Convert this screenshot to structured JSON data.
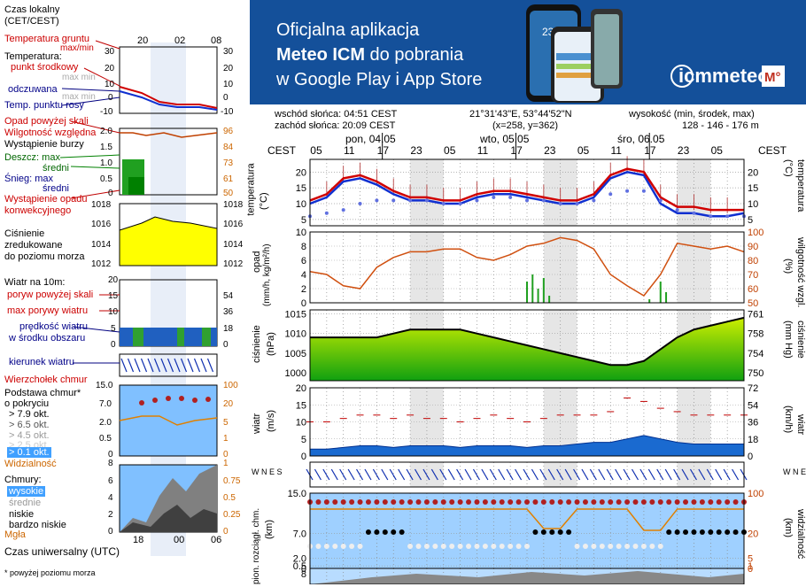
{
  "banner": {
    "line1": "Oficjalna aplikacja",
    "line2a": "Meteo ICM",
    "line2b": " do pobrania",
    "line3": "w Google Play i App Store",
    "logo_text": "icmmeteo",
    "logo_badge": "M°",
    "phone_temp": "23°"
  },
  "legend": {
    "time_local": "Czas lokalny",
    "time_local2": "(CET/CEST)",
    "top_ticks": [
      "20",
      "02",
      "08"
    ],
    "temp_ground": "Temperatura gruntu",
    "temp_ground_mm": "max/min",
    "temperature": "Temperatura:",
    "mid_point": "punkt środkowy",
    "max_min": "max min",
    "felt": "odczuwana",
    "max_min2": "max min",
    "dew_point": "Temp. punktu rosy",
    "temp_ticks": [
      "30",
      "20",
      "10",
      "0",
      "-10"
    ],
    "precip_above": "Opad powyżej skali",
    "humidity": "Wilgotność względna",
    "storm": "Wystąpienie burzy",
    "rain_max": "Deszcz: max",
    "rain_mean": "średni",
    "snow_max": "Śnieg:   max",
    "snow_mean": "średni",
    "precip_conv": "Wystąpienie opadu",
    "precip_conv2": "konwekcyjnego",
    "precip_ticks": [
      "2.0",
      "1.5",
      "1.0",
      "0.5",
      "0"
    ],
    "hum_ticks": [
      "96",
      "84",
      "73",
      "61",
      "50"
    ],
    "pressure1": "Ciśnienie",
    "pressure2": "zredukowane",
    "pressure3": "do poziomu morza",
    "press_ticks": [
      "1018",
      "1016",
      "1014",
      "1012"
    ],
    "wind_at": "Wiatr na 10m:",
    "gusts_above": "poryw powyżej skali",
    "max_gust": "max porywy wiatru",
    "wind_speed": "prędkość wiatru",
    "wind_speed2": "w środku obszaru",
    "wind_ticks_l": [
      "20",
      "15",
      "10",
      "5",
      "0"
    ],
    "wind_ticks_r": [
      "72",
      "54",
      "36",
      "18",
      "0"
    ],
    "wind_dir": "kierunek wiatru",
    "cloud_top": "Wierzchołek chmur",
    "cloud_base": "Podstawa chmur*",
    "cloud_cover": "o pokryciu",
    "okt1": "> 7.9 okt.",
    "okt2": "> 6.5 okt.",
    "okt3": "> 4.5 okt.",
    "okt4": "> 2.5 okt.",
    "okt5": "> 0.1 okt.",
    "visibility": "Widzialność",
    "cb_ticks_l": [
      "15.0",
      "7.0",
      "2.0",
      "0.5",
      "0"
    ],
    "cb_ticks_r": [
      "100",
      "20",
      "5",
      "1",
      "0"
    ],
    "clouds": "Chmury:",
    "high": "wysokie",
    "medium": "średnie",
    "low": "niskie",
    "very_low": "bardzo niskie",
    "fog": "Mgła",
    "cl_ticks_l": [
      "8",
      "6",
      "4",
      "2",
      "0"
    ],
    "cl_ticks_r": [
      "1",
      "0.75",
      "0.5",
      "0.25",
      "0"
    ],
    "utc": "Czas uniwersalny (UTC)",
    "bottom_ticks": [
      "18",
      "00",
      "06"
    ],
    "footnote": "* powyżej poziomu morza"
  },
  "info": {
    "sunrise": "wschód słońca: 04:51 CEST",
    "sunset": "zachód słońca: 20:09 CEST",
    "coords": "21°31'43\"E, 53°44'52\"N",
    "grid": "(x=258,  y=362)",
    "height_label": "wysokość (min, środek, max)",
    "height_vals": "128 - 146 - 176 m"
  },
  "axis": {
    "tz": "CEST",
    "days": [
      "pon, 04.05",
      "wto, 05.05",
      "śro, 06.05"
    ],
    "hours": [
      "05",
      "11",
      "17",
      "23",
      "05",
      "11",
      "17",
      "23",
      "05",
      "11",
      "17",
      "23",
      "05"
    ]
  },
  "panels": {
    "temp_l": "temperatura",
    "temp_l_unit": "(°C)",
    "temp_r": "temperatura",
    "temp_r_unit": "(°C)",
    "temp_ticks": [
      "20",
      "15",
      "10",
      "5"
    ],
    "precip_l": "opad",
    "precip_l_unit": "(mm/h, kg/m²/h)",
    "precip_r": "wilgotność wzgl.",
    "precip_r_unit": "(%)",
    "precip_ticks": [
      "10",
      "8",
      "6",
      "4",
      "2",
      "0"
    ],
    "hum_ticks": [
      "100",
      "90",
      "80",
      "70",
      "60",
      "50"
    ],
    "press_l": "ciśnienie",
    "press_l_unit": "(hPa)",
    "press_r": "ciśnienie",
    "press_r_unit": "(mm Hg)",
    "press_ticks": [
      "1015",
      "1010",
      "1005",
      "1000"
    ],
    "press_ticks_r": [
      "761",
      "758",
      "754",
      "750"
    ],
    "wind_l": "wiatr",
    "wind_l_unit": "(m/s)",
    "wind_r": "wiatr",
    "wind_r_unit": "(km/h)",
    "wind_ticks": [
      "20",
      "15",
      "10",
      "5",
      "0"
    ],
    "wind_ticks_r": [
      "72",
      "54",
      "36",
      "18",
      "0"
    ],
    "dir_label": "W N E S",
    "cloud_l": "pion. rozciągł. chm.",
    "cloud_l_unit": "(km)",
    "cloud_r": "widzialność",
    "cloud_r_unit": "(km)",
    "cb_ticks": [
      "15.0",
      "7.0",
      "2.0",
      "0.5",
      "0"
    ],
    "cb_ticks_r": [
      "100",
      "20",
      "5",
      "1",
      "0"
    ],
    "cl_tick": "8"
  },
  "colors": {
    "banner": "#14509a",
    "temp_line": "#d00000",
    "felt_line": "#1030d0",
    "dew_dots": "#6070e0",
    "humidity": "#d05010",
    "pressure_fill": "#88dd00",
    "night_shade": "#e6e6e6"
  },
  "chart_data": [
    {
      "type": "line",
      "title": "temperatura",
      "ylabel": "(°C)",
      "ylim": [
        3,
        24
      ],
      "x": [
        0,
        3,
        6,
        9,
        12,
        15,
        18,
        21,
        24,
        27,
        30,
        33,
        36,
        39,
        42,
        45,
        48,
        51,
        54,
        57,
        60,
        63,
        66,
        69,
        72,
        75,
        78
      ],
      "series": [
        {
          "name": "temperatura",
          "values": [
            11,
            13,
            18,
            19,
            17,
            14,
            12,
            12,
            11,
            11,
            13,
            14,
            14,
            13,
            12,
            11,
            11,
            13,
            19,
            21,
            20,
            12,
            9,
            9,
            8,
            8,
            8
          ]
        },
        {
          "name": "odczuwana",
          "values": [
            10,
            12,
            17,
            18,
            16,
            13,
            11,
            11,
            10,
            10,
            12,
            13,
            13,
            12,
            11,
            10,
            10,
            12,
            18,
            20,
            19,
            10,
            7,
            7,
            6,
            6,
            7
          ]
        },
        {
          "name": "temp. punktu rosy",
          "values": [
            6,
            7,
            8,
            10,
            11,
            11,
            11,
            11,
            10,
            10,
            11,
            12,
            12,
            11,
            11,
            10,
            10,
            11,
            13,
            14,
            14,
            11,
            8,
            7,
            6,
            6,
            6
          ]
        }
      ]
    },
    {
      "type": "line",
      "title": "wilgotność wzgl.",
      "ylabel": "(%)",
      "ylim": [
        50,
        100
      ],
      "x": [
        0,
        3,
        6,
        9,
        12,
        15,
        18,
        21,
        24,
        27,
        30,
        33,
        36,
        39,
        42,
        45,
        48,
        51,
        54,
        57,
        60,
        63,
        66,
        69,
        72,
        75,
        78
      ],
      "values": [
        72,
        70,
        62,
        60,
        75,
        82,
        86,
        86,
        88,
        88,
        82,
        80,
        84,
        90,
        92,
        96,
        94,
        88,
        70,
        62,
        55,
        70,
        92,
        90,
        88,
        90,
        86
      ]
    },
    {
      "type": "area",
      "title": "ciśnienie",
      "ylabel": "(hPa)",
      "ylim": [
        998,
        1016
      ],
      "x": [
        0,
        3,
        6,
        9,
        12,
        15,
        18,
        21,
        24,
        27,
        30,
        33,
        36,
        39,
        42,
        45,
        48,
        51,
        54,
        57,
        60,
        63,
        66,
        69,
        72,
        75,
        78
      ],
      "values": [
        1009,
        1009,
        1009,
        1009,
        1009,
        1010,
        1011,
        1011,
        1011,
        1011,
        1010,
        1009,
        1008,
        1007,
        1006,
        1005,
        1004,
        1003,
        1002,
        1002,
        1003,
        1006,
        1009,
        1011,
        1012,
        1013,
        1014
      ]
    },
    {
      "type": "line",
      "title": "wiatr",
      "ylabel": "(m/s)",
      "ylim": [
        0,
        20
      ],
      "x": [
        0,
        3,
        6,
        9,
        12,
        15,
        18,
        21,
        24,
        27,
        30,
        33,
        36,
        39,
        42,
        45,
        48,
        51,
        54,
        57,
        60,
        63,
        66,
        69,
        72,
        75,
        78
      ],
      "series": [
        {
          "name": "prędkość wiatru",
          "values": [
            2,
            2,
            2.5,
            3,
            3,
            2.5,
            3,
            3,
            3,
            2.5,
            3,
            3,
            3,
            2.5,
            3,
            3,
            3.5,
            4,
            4,
            5,
            6,
            5,
            4,
            3.5,
            3.5,
            3.5,
            3.5
          ]
        },
        {
          "name": "max porywy wiatru",
          "values": [
            10,
            10,
            11,
            12,
            12,
            11,
            12,
            11,
            11,
            10,
            11,
            12,
            11,
            10,
            11,
            12,
            12,
            12,
            13,
            17,
            16,
            14,
            13,
            12,
            12,
            12,
            12
          ]
        }
      ]
    }
  ]
}
